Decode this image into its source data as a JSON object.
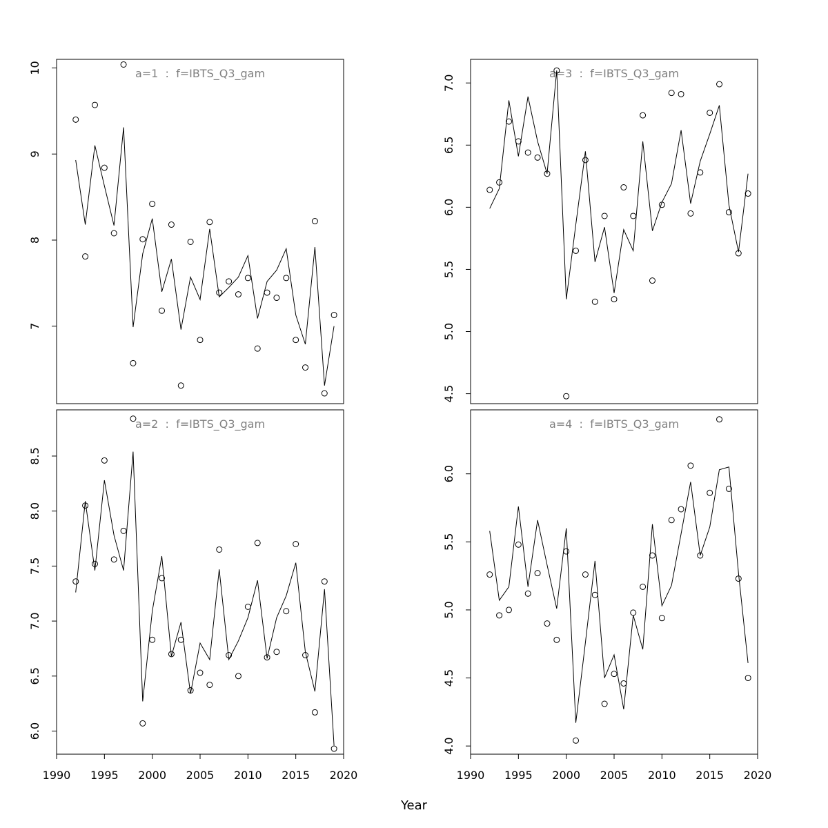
{
  "xlabel": "Year",
  "chart_data": [
    {
      "type": "scatter",
      "panel": "top-left",
      "title": "a=1  :  f=IBTS_Q3_gam",
      "xlim": [
        1990,
        2020
      ],
      "ylim": [
        6.1,
        10.1
      ],
      "yticks": [
        7,
        8,
        9,
        10
      ],
      "years": [
        1992,
        1993,
        1994,
        1995,
        1996,
        1997,
        1998,
        1999,
        2000,
        2001,
        2002,
        2003,
        2004,
        2005,
        2006,
        2007,
        2008,
        2009,
        2010,
        2011,
        2012,
        2013,
        2014,
        2015,
        2016,
        2017,
        2018,
        2019
      ],
      "observed": [
        9.4,
        7.81,
        9.57,
        8.84,
        8.08,
        10.04,
        6.57,
        8.01,
        8.42,
        7.18,
        8.18,
        6.31,
        7.98,
        6.84,
        8.21,
        7.39,
        7.52,
        7.37,
        7.56,
        6.74,
        7.39,
        7.33,
        7.56,
        6.84,
        6.52,
        8.22,
        6.22,
        7.13
      ],
      "fitted": [
        8.93,
        8.18,
        9.1,
        8.63,
        8.17,
        9.31,
        6.99,
        7.84,
        8.25,
        7.4,
        7.78,
        6.96,
        7.57,
        7.31,
        8.13,
        7.34,
        7.45,
        7.57,
        7.82,
        7.09,
        7.52,
        7.65,
        7.9,
        7.13,
        6.79,
        7.92,
        6.31,
        7.0
      ]
    },
    {
      "type": "scatter",
      "panel": "top-right",
      "title": "a=3  :  f=IBTS_Q3_gam",
      "xlim": [
        1990,
        2020
      ],
      "ylim": [
        4.42,
        7.19
      ],
      "yticks": [
        4.5,
        5.0,
        5.5,
        6.0,
        6.5,
        7.0
      ],
      "years": [
        1992,
        1993,
        1994,
        1995,
        1996,
        1997,
        1998,
        1999,
        2000,
        2001,
        2002,
        2003,
        2004,
        2005,
        2006,
        2007,
        2008,
        2009,
        2010,
        2011,
        2012,
        2013,
        2014,
        2015,
        2016,
        2017,
        2018,
        2019
      ],
      "observed": [
        6.14,
        6.2,
        6.69,
        6.53,
        6.44,
        6.4,
        6.27,
        7.1,
        4.48,
        5.65,
        6.38,
        5.24,
        5.93,
        5.26,
        6.16,
        5.93,
        6.74,
        5.41,
        6.02,
        6.92,
        6.91,
        5.95,
        6.28,
        6.76,
        6.99,
        5.96,
        5.63,
        6.11
      ],
      "fitted": [
        5.99,
        6.15,
        6.86,
        6.41,
        6.89,
        6.53,
        6.27,
        7.1,
        5.26,
        5.86,
        6.45,
        5.56,
        5.84,
        5.31,
        5.82,
        5.65,
        6.53,
        5.81,
        6.04,
        6.19,
        6.62,
        6.03,
        6.37,
        6.59,
        6.82,
        6.02,
        5.64,
        6.27
      ]
    },
    {
      "type": "scatter",
      "panel": "bottom-left",
      "title": "a=2  :  f=IBTS_Q3_gam",
      "xlim": [
        1990,
        2020
      ],
      "ylim": [
        5.79,
        8.92
      ],
      "yticks": [
        6.0,
        6.5,
        7.0,
        7.5,
        8.0,
        8.5
      ],
      "years": [
        1992,
        1993,
        1994,
        1995,
        1996,
        1997,
        1998,
        1999,
        2000,
        2001,
        2002,
        2003,
        2004,
        2005,
        2006,
        2007,
        2008,
        2009,
        2010,
        2011,
        2012,
        2013,
        2014,
        2015,
        2016,
        2017,
        2018,
        2019
      ],
      "observed": [
        7.36,
        8.05,
        7.52,
        8.46,
        7.56,
        7.82,
        8.84,
        6.07,
        6.83,
        7.39,
        6.7,
        6.83,
        6.37,
        6.53,
        6.42,
        7.65,
        6.69,
        6.5,
        7.13,
        7.71,
        6.67,
        6.72,
        7.09,
        7.7,
        6.69,
        6.17,
        7.36,
        5.84
      ],
      "fitted": [
        7.26,
        8.09,
        7.46,
        8.28,
        7.78,
        7.46,
        8.54,
        6.27,
        7.09,
        7.59,
        6.68,
        6.99,
        6.34,
        6.8,
        6.65,
        7.47,
        6.65,
        6.82,
        7.03,
        7.37,
        6.66,
        7.03,
        7.23,
        7.53,
        6.72,
        6.36,
        7.29,
        5.87
      ]
    },
    {
      "type": "scatter",
      "panel": "bottom-right",
      "title": "a=4  :  f=IBTS_Q3_gam",
      "xlim": [
        1990,
        2020
      ],
      "ylim": [
        3.94,
        6.47
      ],
      "yticks": [
        4.0,
        4.5,
        5.0,
        5.5,
        6.0
      ],
      "years": [
        1992,
        1993,
        1994,
        1995,
        1996,
        1997,
        1998,
        1999,
        2000,
        2001,
        2002,
        2003,
        2004,
        2005,
        2006,
        2007,
        2008,
        2009,
        2010,
        2011,
        2012,
        2013,
        2014,
        2015,
        2016,
        2017,
        2018,
        2019
      ],
      "observed": [
        5.26,
        4.96,
        5.0,
        5.48,
        5.12,
        5.27,
        4.9,
        4.78,
        5.43,
        4.04,
        5.26,
        5.11,
        4.31,
        4.53,
        4.46,
        4.98,
        5.17,
        5.4,
        4.94,
        5.66,
        5.74,
        6.06,
        5.4,
        5.86,
        6.4,
        5.89,
        5.23,
        4.5
      ],
      "fitted": [
        5.58,
        5.07,
        5.17,
        5.76,
        5.17,
        5.66,
        5.33,
        5.01,
        5.6,
        4.17,
        4.76,
        5.36,
        4.5,
        4.67,
        4.27,
        4.96,
        4.71,
        5.63,
        5.03,
        5.18,
        5.56,
        5.94,
        5.4,
        5.61,
        6.03,
        6.05,
        5.27,
        4.61
      ]
    }
  ]
}
